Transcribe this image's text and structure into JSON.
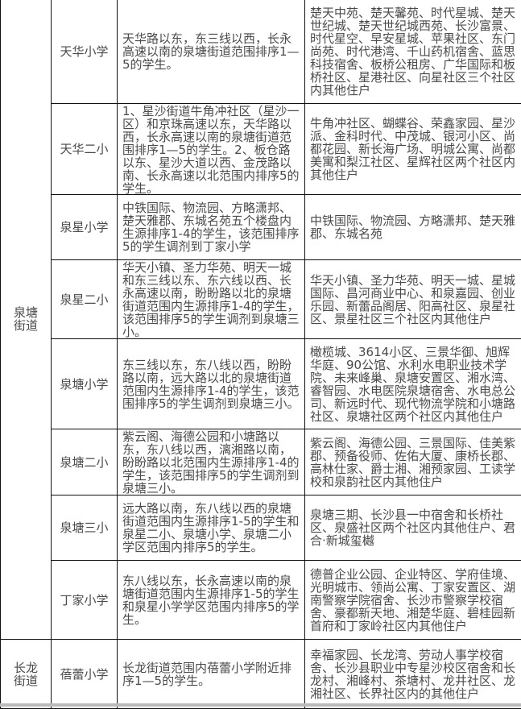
{
  "districts": [
    {
      "name": "泉塘街道",
      "rows": [
        {
          "school": "天华小学",
          "scope": "天华路以东，东三线以西，长永高速以南的泉塘街道范围排序1—5的学生。",
          "communities": "楚天中苑、楚天馨苑、时代星城、楚天世纪城、楚天世纪城西苑、长沙富景、时代星空、早安星城、苹果社区、东门尚苑、时代港湾、千山药机宿舍、蓝思科技宿舍、板桥公租房、广华国际和板桥社区、星港社区、向星社区三个社区内其他住户"
        },
        {
          "school": "天华二小",
          "scope": "1、星沙街道牛角冲社区（星沙一区）和京珠高速以东，天华路以西，长永高速以南的泉塘街道范围排序1—5的学生。2、板仓路以东、星沙大道以西、金茂路以南、长永高速以北范围内排序5的学生。",
          "communities": "牛角冲社区、蝴蝶谷、荣鑫家园、星沙派、金科时代、中茂城、银河小区、尚都花园、新长海广场、明城公寓、尚都美寓和梨江社区、星辉社区两个社区内其他住户"
        },
        {
          "school": "泉星小学",
          "scope": "中铁国际、物流园、方略潇邦、楚天雅郡、东城名苑五个楼盘内生源排序1-4的学生，该范围排序5的学生调剂到丁家小学",
          "communities": "中铁国际、物流园、方略潇邦、楚天雅郡、东城名苑"
        },
        {
          "school": "泉星二小",
          "scope": "华天小镇、圣力华苑、明天一城和东三线以东、东六线以西、长永高速以南，盼盼路以北的泉塘街道范围内生源排序1-4的学生，该范围排序5的学生调剂到泉塘三小。",
          "communities": "华天小镇、圣力华苑、明天一城、星城国际、昌河商业中心、和泉嘉园、创业乐园、新蕾品阁居、阳高社区、泉星社区、景星社区三个社区内其他住户"
        },
        {
          "school": "泉塘小学",
          "scope": "东三线以东，东八线以西，盼盼路以南，远大路以北的泉塘街道范围内生源排序1-4的学生，该范围排序5的学生调剂到泉塘三小。",
          "communities": "橄榄城、3614小区、三景华御、旭辉华庭、90公馆、水利水电职业技术学院、未来峰巢、泉塘安置区、湘水湾、睿智园、水电医院泉塘宿舍、水电总公司、新远时代、现代物流学院和小塘路社区、泉塘社区两个社区内其他住户"
        },
        {
          "school": "泉塘二小",
          "scope": "紫云阁、海德公园和小塘路以东，东八线以西，漓湘路以南，盼盼路以北范围内生源排序1-4的学生，该范围排序5的学生调剂到泉塘三小。",
          "communities": "紫云阁、海德公园、三景国际、佳美紫郡、预备役师、佐佑大厦、康桥长郡、高林仕家、爵士湘、湘预家园、工读学校和泉韵社区内其他住户"
        },
        {
          "school": "泉塘三小",
          "scope": "远大路以南，东八线以西的泉塘街道范围内生源排序1-5的学生和泉星二小、泉塘小学、泉塘二小学区范围内排序5的学生。",
          "communities": "泉塘三期、长沙县一中宿舍和长桥社区、泉盛社区两个社区内其他住户、君合·新城玺樾"
        },
        {
          "school": "丁家小学",
          "scope": "东八线以东，长永高速以南的泉塘街道范围内生源排序1-5的学生和泉星小学学区范围内排序5的学生。",
          "communities": "德普企业公园、企业特区、学府佳境、光明城市、领尚公寓、丁家安置区、湖南警察学院宿舍、长沙市警察学校宿舍、豪都新天地、湘楚华庭、碧桂园新首府和丁家岭社区内其他住户"
        }
      ]
    },
    {
      "name": "长龙街道",
      "rows": [
        {
          "school": "蓓蕾小学",
          "scope": "长龙街道范围内蓓蕾小学附近排序1—5的学生。",
          "communities": "幸福家园、长龙湾、劳动人事学校宿舍、长沙县职业中专星沙校区宿舍和长龙村、湘峰村、茶塘村、龙井社区、龙湘社区、长界社区内的其他住户"
        }
      ]
    }
  ]
}
